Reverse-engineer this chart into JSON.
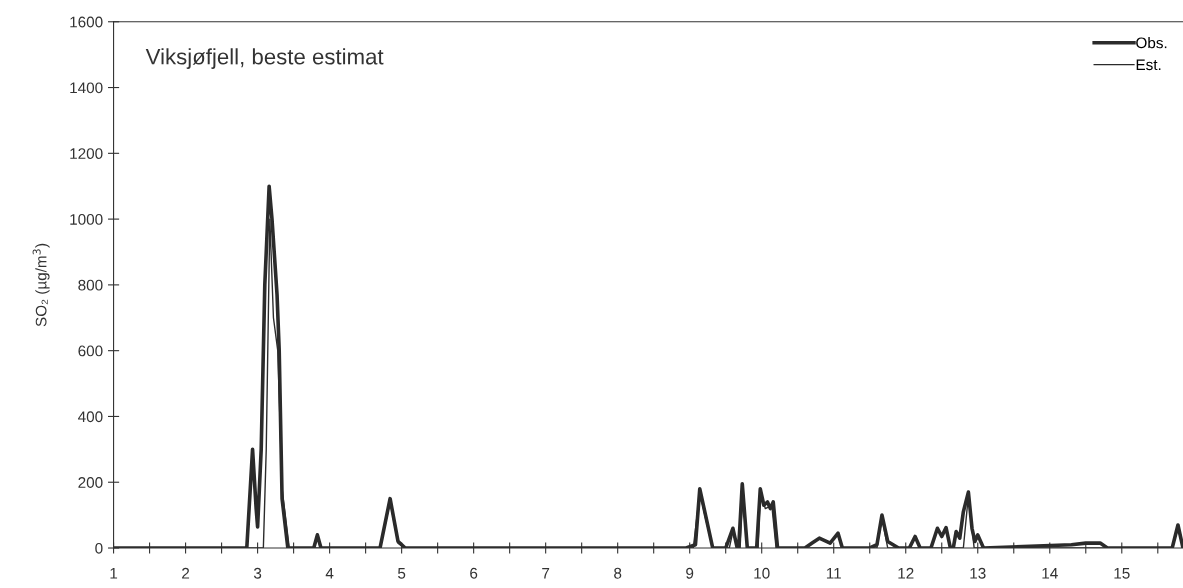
{
  "chart_data": {
    "type": "line",
    "title": "Viksjøfjell, beste estimat",
    "ylabel": "SO₂ (µg/m$^{3}$)",
    "xlim": [
      1,
      15.85
    ],
    "ylim": [
      0,
      1600
    ],
    "xticks": [
      1,
      {
        "value": 1.5,
        "label": null
      },
      2,
      {
        "value": 2.5,
        "label": null
      },
      3,
      {
        "value": 3.5,
        "label": null
      },
      4,
      {
        "value": 4.5,
        "label": null
      },
      5,
      {
        "value": 5.5,
        "label": null
      },
      6,
      {
        "value": 6.5,
        "label": null
      },
      7,
      {
        "value": 7.5,
        "label": null
      },
      8,
      {
        "value": 8.5,
        "label": null
      },
      9,
      {
        "value": 9.5,
        "label": null
      },
      10,
      {
        "value": 10.5,
        "label": null
      },
      11,
      {
        "value": 11.5,
        "label": null
      },
      12,
      {
        "value": 12.5,
        "label": null
      },
      13,
      {
        "value": 13.5,
        "label": null
      },
      14,
      {
        "value": 14.5,
        "label": null
      },
      15,
      {
        "value": 15.5,
        "label": null
      }
    ],
    "yticks": [
      0,
      200,
      400,
      600,
      800,
      1000,
      1200,
      1400,
      1600
    ],
    "grid": false,
    "legend": "top right",
    "marker": "none",
    "line_style": "solid",
    "series": [
      {
        "name": "Obs.",
        "color": "#2b2b2b",
        "x": [
          1,
          2.85,
          2.93,
          2.98,
          3.0,
          3.05,
          3.1,
          3.16,
          3.2,
          3.27,
          3.3,
          3.34,
          3.42,
          3.78,
          3.83,
          3.88,
          4.7,
          4.84,
          4.95,
          5.05,
          8.95,
          9.08,
          9.14,
          9.22,
          9.32,
          9.5,
          9.6,
          9.66,
          9.68,
          9.73,
          9.8,
          9.85,
          9.93,
          9.98,
          10.03,
          10.08,
          10.12,
          10.16,
          10.22,
          10.6,
          10.7,
          10.8,
          10.95,
          11.06,
          11.12,
          11.5,
          11.6,
          11.67,
          11.75,
          11.9,
          12.05,
          12.13,
          12.2,
          12.35,
          12.44,
          12.5,
          12.56,
          12.62,
          12.66,
          12.7,
          12.75,
          12.8,
          12.87,
          12.92,
          12.96,
          13.0,
          13.08,
          14.3,
          14.5,
          14.7,
          14.8,
          15.7,
          15.78,
          15.85
        ],
        "values": [
          0,
          0,
          300,
          120,
          64,
          300,
          800,
          1100,
          1000,
          770,
          600,
          150,
          0,
          0,
          40,
          0,
          0,
          150,
          20,
          0,
          0,
          10,
          180,
          100,
          0,
          0,
          60,
          0,
          0,
          195,
          0,
          0,
          0,
          180,
          130,
          140,
          120,
          140,
          0,
          0,
          15,
          30,
          15,
          45,
          0,
          0,
          10,
          100,
          20,
          0,
          0,
          35,
          0,
          0,
          60,
          35,
          62,
          0,
          0,
          50,
          30,
          110,
          170,
          60,
          20,
          40,
          0,
          10,
          15,
          15,
          0,
          0,
          70,
          0
        ]
      },
      {
        "name": "Est.",
        "color": "#2b2b2b",
        "x": [
          1,
          3.08,
          3.12,
          3.17,
          3.22,
          3.28,
          3.34,
          3.44,
          4.7,
          4.84,
          4.95,
          5.05,
          9.05,
          9.14,
          9.22,
          9.32,
          9.55,
          9.6,
          9.66,
          9.7,
          9.74,
          9.8,
          9.95,
          9.98,
          10.05,
          10.14,
          10.2,
          11.6,
          11.67,
          11.75,
          12.8,
          12.87,
          12.95,
          15.7,
          15.78,
          15.85
        ],
        "values": [
          0,
          0,
          300,
          1000,
          700,
          600,
          180,
          0,
          0,
          140,
          15,
          0,
          0,
          170,
          90,
          0,
          0,
          50,
          0,
          0,
          180,
          0,
          0,
          170,
          120,
          130,
          0,
          0,
          90,
          0,
          0,
          160,
          0,
          0,
          60,
          0
        ]
      }
    ]
  }
}
